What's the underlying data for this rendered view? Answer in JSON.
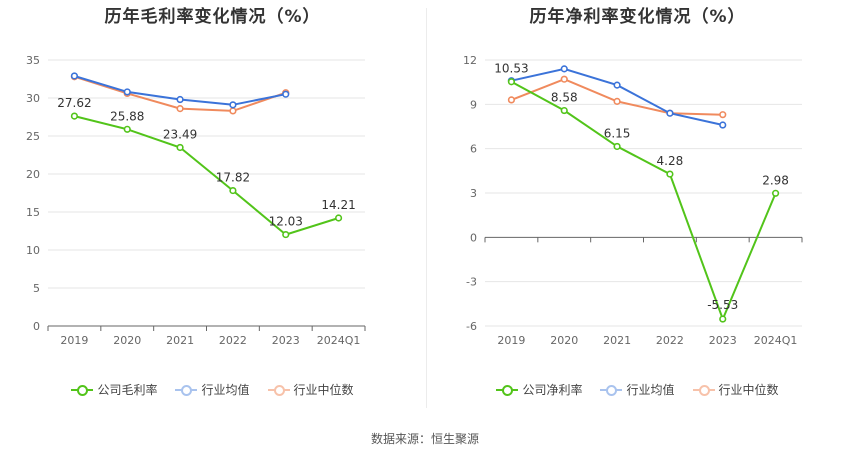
{
  "source": "数据来源：恒生聚源",
  "chart_data": [
    {
      "type": "line",
      "title": "历年毛利率变化情况（%）",
      "categories": [
        "2019",
        "2020",
        "2021",
        "2022",
        "2023",
        "2024Q1"
      ],
      "y_ticks": [
        "0",
        "5",
        "10",
        "15",
        "20",
        "25",
        "30",
        "35"
      ],
      "ylim": [
        0,
        35
      ],
      "grid": true,
      "legend_position": "bottom",
      "series": [
        {
          "name": "公司毛利率",
          "color": "#52c41a",
          "values": [
            27.62,
            25.88,
            23.49,
            17.82,
            12.03,
            14.21
          ],
          "labels": [
            "27.62",
            "25.88",
            "23.49",
            "17.82",
            "12.03",
            "14.21"
          ]
        },
        {
          "name": "行业均值",
          "color": "#3b73d9",
          "values": [
            32.9,
            30.8,
            29.8,
            29.1,
            30.5,
            null
          ]
        },
        {
          "name": "行业中位数",
          "color": "#f08a5d",
          "values": [
            32.8,
            30.6,
            28.6,
            28.3,
            30.7,
            null
          ]
        }
      ]
    },
    {
      "type": "line",
      "title": "历年净利率变化情况（%）",
      "categories": [
        "2019",
        "2020",
        "2021",
        "2022",
        "2023",
        "2024Q1"
      ],
      "y_ticks": [
        "-6",
        "-3",
        "0",
        "3",
        "6",
        "9",
        "12"
      ],
      "ylim": [
        -6,
        12
      ],
      "grid": true,
      "legend_position": "bottom",
      "series": [
        {
          "name": "公司净利率",
          "color": "#52c41a",
          "values": [
            10.53,
            8.58,
            6.15,
            4.28,
            -5.53,
            2.98
          ],
          "labels": [
            "10.53",
            "8.58",
            "6.15",
            "4.28",
            "-5.53",
            "2.98"
          ]
        },
        {
          "name": "行业均值",
          "color": "#3b73d9",
          "values": [
            10.6,
            11.4,
            10.3,
            8.4,
            7.6,
            null
          ]
        },
        {
          "name": "行业中位数",
          "color": "#f08a5d",
          "values": [
            9.3,
            10.7,
            9.2,
            8.4,
            8.3,
            null
          ]
        }
      ]
    }
  ]
}
